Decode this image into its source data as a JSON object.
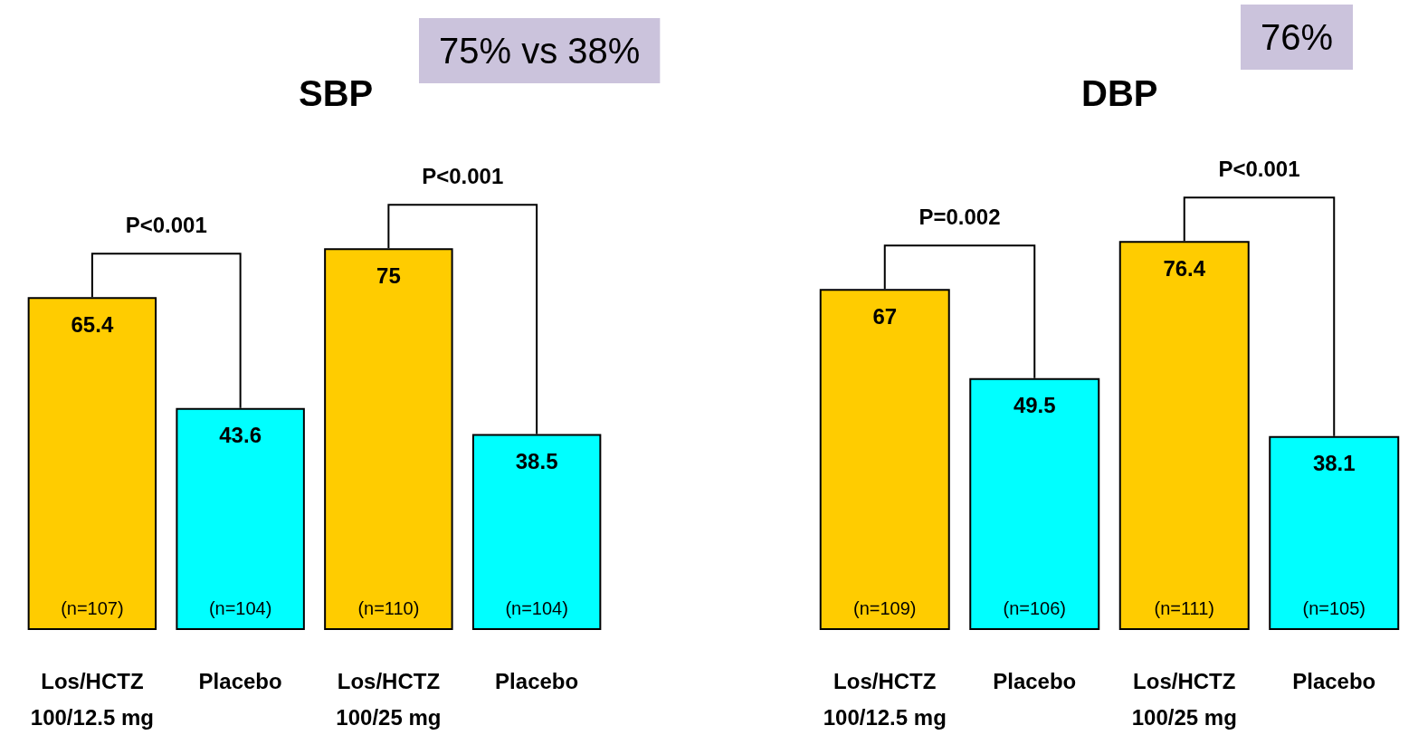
{
  "chart_data": [
    {
      "type": "bar",
      "title": "SBP",
      "subtitle": "75% vs 38%",
      "categories": [
        "Los/HCTZ\n100/12.5 mg",
        "Placebo",
        "Los/HCTZ\n100/25 mg",
        "Placebo"
      ],
      "values": [
        65.4,
        43.6,
        75,
        38.5
      ],
      "colors": [
        "#ffcc00",
        "#00ffff",
        "#ffcc00",
        "#00ffff"
      ],
      "data_labels": true,
      "annotations": [
        "(n=107)",
        "(n=104)",
        "(n=110)",
        "(n=104)",
        "P<0.001",
        "P<0.001"
      ]
    },
    {
      "type": "bar",
      "title": "DBP",
      "subtitle": "76%",
      "categories": [
        "Los/HCTZ\n100/12.5 mg",
        "Placebo",
        "Los/HCTZ\n100/25 mg",
        "Placebo"
      ],
      "values": [
        67,
        49.5,
        76.4,
        38.1
      ],
      "colors": [
        "#ffcc00",
        "#00ffff",
        "#ffcc00",
        "#00ffff"
      ],
      "data_labels": true,
      "annotations": [
        "(n=109)",
        "(n=106)",
        "(n=111)",
        "(n=105)",
        "P=0.002",
        "P<0.001"
      ]
    }
  ]
}
